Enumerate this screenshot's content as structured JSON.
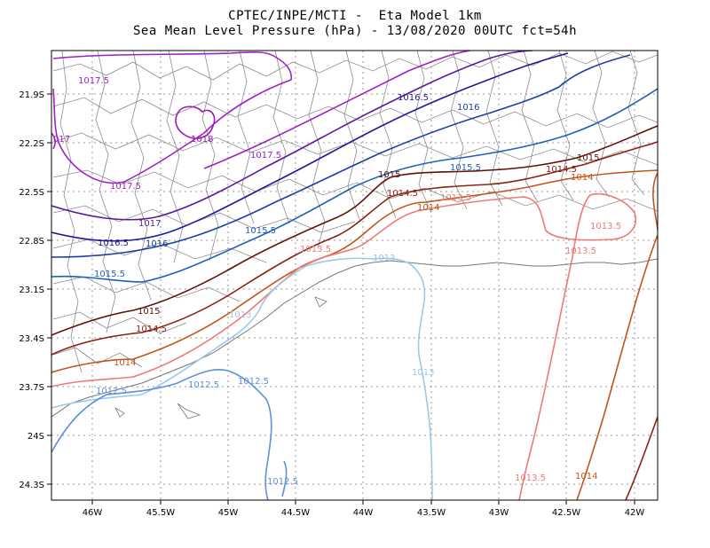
{
  "title": {
    "line1": "CPTEC/INPE/MCTI -  Eta Model 1km",
    "line2": "Sea Mean Level Pressure (hPa) - 13/08/2020 00UTC fct=54h"
  },
  "axes": {
    "x_labels": [
      "46W",
      "45.5W",
      "45W",
      "44.5W",
      "44W",
      "43.5W",
      "43W",
      "42.5W",
      "42W"
    ],
    "y_labels": [
      "21.9S",
      "22.2S",
      "22.5S",
      "22.8S",
      "23.1S",
      "23.4S",
      "23.7S",
      "24S",
      "24.3S"
    ]
  },
  "colors": {
    "c1012_5": "#5f8fd6",
    "c1013": "#9cc8ea",
    "c1013_5": "#ef7a74",
    "c1014": "#c4531a",
    "c1014_5": "#8b2312",
    "c1015": "#5e1108",
    "c1015_5": "#1f5fb8",
    "c1016": "#1a3fa6",
    "c1016_5": "#1e1a9a",
    "c1017": "#5a1a9e",
    "c1017_5": "#a020c8",
    "c1018": "#9a1ab4",
    "c1017_edge": "#a020c8",
    "border": "#8c8c8c",
    "grid": "#999999"
  },
  "contour_labels": {
    "l1017_5_a": "1017.5",
    "l1017_edge": "017",
    "l1018": "1018",
    "l1017_5_b": "1017.5",
    "l1017_5_c": "1017.5",
    "l1017": "1017",
    "l1016_5": "1016.5",
    "l1016": "1016",
    "l1015_5_a": "1015.5",
    "l1015_5_b": "1015.5",
    "l1016_5_b": "1016.5",
    "l1016_b": "1016",
    "l1015_5_c": "1015.5",
    "l1015_a": "1015",
    "l1015_b": "1015",
    "l1015_c": "1015",
    "l1014_5_a": "1014.5",
    "l1014_5_b": "1014.5",
    "l1014_5_c": "1014.5",
    "l1014_a": "1014",
    "l1014_b": "1014",
    "l1014_c": "1014",
    "l1014_d": "1014",
    "l1013_5_a": "1013.5",
    "l1013_5_b": "1013.5",
    "l1013_5_c": "1013.5",
    "l1013_5_d": "1013.5",
    "l1013_5_e": "1013.5",
    "l1013_a": "1013",
    "l1013_b": "1013",
    "l1013_c": "1013",
    "l1012_5_a": "1012.5",
    "l1012_5_b": "1012.5",
    "l1012_5_c": "1012.5",
    "l1012_5_d": "1012.5"
  }
}
